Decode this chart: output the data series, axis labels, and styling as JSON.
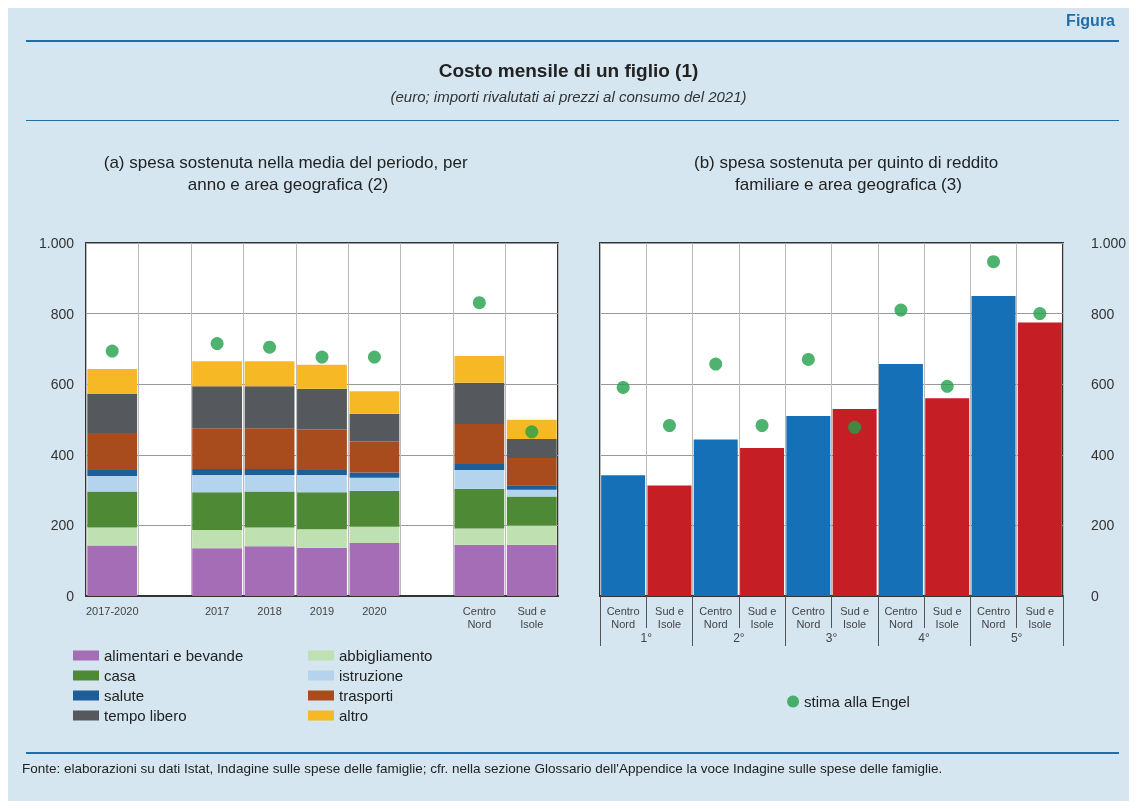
{
  "chart_data": [
    {
      "type": "other",
      "title": "Costo mensile di un figlio (1)",
      "subtitle": "(euro; importi rivalutati ai prezzi al consumo del 2021)",
      "annotations": [
        "Figura",
        "Fonte: elaborazioni su dati Istat, Indagine sulle spese delle famiglie; cfr. nella sezione Glossario dell'Appendice la voce Indagine sulle spese delle famiglie."
      ]
    },
    {
      "type": "bar",
      "stacked": true,
      "title": "(a) spesa sostenuta nella media del periodo, per anno e area geografica (2)",
      "categories": [
        "2017-2020",
        null,
        "2017",
        "2018",
        "2019",
        "2020",
        null,
        "Centro Nord",
        "Sud e Isole"
      ],
      "series": [
        {
          "name": "alimentari e bevande",
          "color": "#a56db5",
          "values": [
            143,
            null,
            135,
            141,
            137,
            150,
            null,
            145,
            145
          ]
        },
        {
          "name": "abbigliamento",
          "color": "#bfe0b0",
          "values": [
            51,
            null,
            52,
            53,
            52,
            46,
            null,
            46,
            55
          ]
        },
        {
          "name": "casa",
          "color": "#4e8a35",
          "values": [
            102,
            null,
            107,
            102,
            105,
            102,
            null,
            113,
            82
          ]
        },
        {
          "name": "istruzione",
          "color": "#b3d4ec",
          "values": [
            44,
            null,
            49,
            47,
            49,
            37,
            null,
            53,
            19
          ]
        },
        {
          "name": "salute",
          "color": "#1d5e99",
          "values": [
            17,
            null,
            17,
            17,
            14,
            15,
            null,
            17,
            13
          ]
        },
        {
          "name": "trasporti",
          "color": "#a84c1e",
          "values": [
            105,
            null,
            115,
            115,
            115,
            88,
            null,
            113,
            77
          ]
        },
        {
          "name": "tempo libero",
          "color": "#55585c",
          "values": [
            110,
            null,
            119,
            119,
            115,
            78,
            null,
            117,
            54
          ]
        },
        {
          "name": "altro",
          "color": "#f7b825",
          "values": [
            71,
            null,
            71,
            71,
            68,
            64,
            null,
            76,
            54
          ]
        },
        {
          "type": "scatter",
          "color": "#22a04a",
          "values": [
            694,
            null,
            715,
            705,
            677,
            677,
            null,
            831,
            465
          ]
        }
      ],
      "ylim": [
        0,
        1000
      ],
      "yticks": [
        0,
        200,
        400,
        600,
        800,
        {
          "value": 1000,
          "label": "1.000"
        }
      ],
      "grid": true,
      "legend": "bottom",
      "marker": "circle"
    },
    {
      "type": "bar",
      "title": "(b) spesa sostenuta per quinto di reddito familiare e area geografica (3)",
      "categories": [
        "Centro Nord",
        "Sud e Isole",
        "Centro Nord",
        "Sud e Isole",
        "Centro Nord",
        "Sud e Isole",
        "Centro Nord",
        "Sud e Isole",
        "Centro Nord",
        "Sud e Isole"
      ],
      "series": [
        {
          "axis": "y2",
          "colors": [
            "#1670b8",
            "#c61e25",
            "#1670b8",
            "#c61e25",
            "#1670b8",
            "#c61e25",
            "#1670b8",
            "#c61e25",
            "#1670b8",
            "#c61e25"
          ],
          "values": [
            342,
            313,
            443,
            419,
            510,
            530,
            657,
            560,
            850,
            775
          ]
        },
        {
          "type": "scatter",
          "axis": "y2",
          "name": "stima alla Engel",
          "color": "#22a04a",
          "values": [
            591,
            483,
            657,
            483,
            670,
            478,
            810,
            594,
            947,
            800
          ]
        }
      ],
      "y2lim": [
        0,
        1000
      ],
      "y2ticks": [
        0,
        200,
        400,
        600,
        800,
        {
          "value": 1000,
          "label": "1.000"
        }
      ],
      "annotations": [
        "1°",
        "2°",
        "3°",
        "4°",
        "5°"
      ],
      "grid": true,
      "legend": "bottom",
      "marker": "circle"
    }
  ]
}
